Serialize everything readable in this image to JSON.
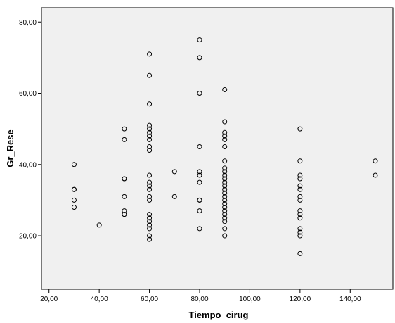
{
  "chart_data": {
    "type": "scatter",
    "xlabel": "Tiempo_cirug",
    "ylabel": "Gr_Rese",
    "xlim": [
      17,
      157
    ],
    "ylim": [
      5,
      84
    ],
    "xticks": [
      20,
      40,
      60,
      80,
      100,
      120,
      140
    ],
    "yticks": [
      20,
      40,
      60,
      80
    ],
    "xtick_labels": [
      "20,00",
      "40,00",
      "60,00",
      "80,00",
      "100,00",
      "120,00",
      "140,00"
    ],
    "ytick_labels": [
      "20,00",
      "40,00",
      "60,00",
      "80,00"
    ],
    "grid": false,
    "marker": "open-circle",
    "colors": {
      "plot_background": "#f0f0f0",
      "marker": "#000000",
      "axis": "#000000"
    },
    "points": [
      [
        30,
        40
      ],
      [
        30,
        33
      ],
      [
        30,
        33
      ],
      [
        30,
        30
      ],
      [
        30,
        28
      ],
      [
        40,
        23
      ],
      [
        50,
        50
      ],
      [
        50,
        47
      ],
      [
        50,
        36
      ],
      [
        50,
        36
      ],
      [
        50,
        31
      ],
      [
        50,
        27
      ],
      [
        50,
        26
      ],
      [
        50,
        26
      ],
      [
        60,
        71
      ],
      [
        60,
        65
      ],
      [
        60,
        57
      ],
      [
        60,
        51
      ],
      [
        60,
        50
      ],
      [
        60,
        49
      ],
      [
        60,
        48
      ],
      [
        60,
        47
      ],
      [
        60,
        45
      ],
      [
        60,
        44
      ],
      [
        60,
        37
      ],
      [
        60,
        35
      ],
      [
        60,
        34
      ],
      [
        60,
        33
      ],
      [
        60,
        31
      ],
      [
        60,
        30
      ],
      [
        60,
        26
      ],
      [
        60,
        25
      ],
      [
        60,
        24
      ],
      [
        60,
        23
      ],
      [
        60,
        22
      ],
      [
        60,
        20
      ],
      [
        60,
        19
      ],
      [
        70,
        38
      ],
      [
        70,
        31
      ],
      [
        80,
        75
      ],
      [
        80,
        70
      ],
      [
        80,
        60
      ],
      [
        80,
        45
      ],
      [
        80,
        38
      ],
      [
        80,
        37
      ],
      [
        80,
        35
      ],
      [
        80,
        30
      ],
      [
        80,
        30
      ],
      [
        80,
        27
      ],
      [
        80,
        22
      ],
      [
        90,
        61
      ],
      [
        90,
        52
      ],
      [
        90,
        49
      ],
      [
        90,
        48
      ],
      [
        90,
        47
      ],
      [
        90,
        45
      ],
      [
        90,
        41
      ],
      [
        90,
        39
      ],
      [
        90,
        38
      ],
      [
        90,
        37
      ],
      [
        90,
        36
      ],
      [
        90,
        35
      ],
      [
        90,
        34
      ],
      [
        90,
        33
      ],
      [
        90,
        32
      ],
      [
        90,
        31
      ],
      [
        90,
        30
      ],
      [
        90,
        29
      ],
      [
        90,
        28
      ],
      [
        90,
        27
      ],
      [
        90,
        26
      ],
      [
        90,
        25
      ],
      [
        90,
        24
      ],
      [
        90,
        22
      ],
      [
        90,
        20
      ],
      [
        120,
        50
      ],
      [
        120,
        41
      ],
      [
        120,
        37
      ],
      [
        120,
        36
      ],
      [
        120,
        34
      ],
      [
        120,
        33
      ],
      [
        120,
        31
      ],
      [
        120,
        30
      ],
      [
        120,
        27
      ],
      [
        120,
        26
      ],
      [
        120,
        25
      ],
      [
        120,
        22
      ],
      [
        120,
        21
      ],
      [
        120,
        20
      ],
      [
        120,
        15
      ],
      [
        150,
        41
      ],
      [
        150,
        37
      ]
    ]
  }
}
